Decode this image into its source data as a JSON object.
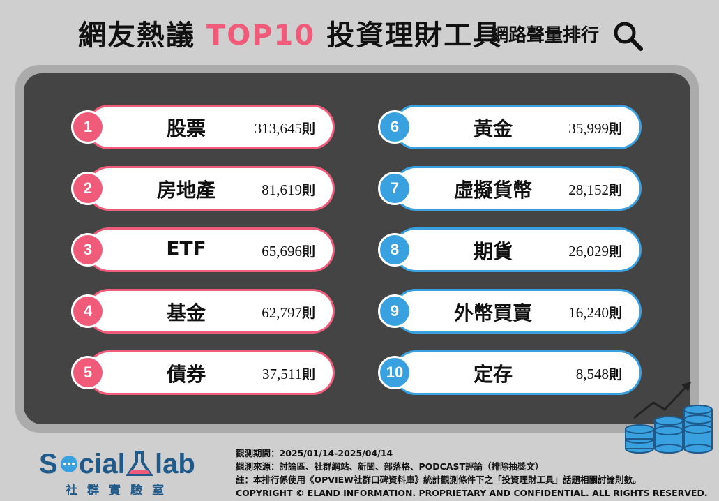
{
  "header": {
    "title_prefix": "網友熱議 ",
    "title_highlight": "TOP10",
    "title_suffix": " 投資理財工具",
    "subtitle": "網路聲量排行",
    "icon": "search-icon"
  },
  "colors": {
    "accent_pink": "#ef5b78",
    "accent_blue": "#3aa1e0",
    "panel_dark": "#444444",
    "brand_blue": "#1f5a8a"
  },
  "unit": "則",
  "rankings_left": [
    {
      "rank": "1",
      "name": "股票",
      "count": "313,645"
    },
    {
      "rank": "2",
      "name": "房地產",
      "count": "81,619"
    },
    {
      "rank": "3",
      "name": "ETF",
      "count": "65,696"
    },
    {
      "rank": "4",
      "name": "基金",
      "count": "62,797"
    },
    {
      "rank": "5",
      "name": "債券",
      "count": "37,511"
    }
  ],
  "rankings_right": [
    {
      "rank": "6",
      "name": "黃金",
      "count": "35,999"
    },
    {
      "rank": "7",
      "name": "虛擬貨幣",
      "count": "28,152"
    },
    {
      "rank": "8",
      "name": "期貨",
      "count": "26,029"
    },
    {
      "rank": "9",
      "name": "外幣買賣",
      "count": "16,240"
    },
    {
      "rank": "10",
      "name": "定存",
      "count": "8,548"
    }
  ],
  "logo": {
    "word": "SocialLab",
    "sub": "社群實驗室"
  },
  "footer": {
    "period": "觀測期間：2025/01/14-2025/04/14",
    "source": "觀測來源：討論區、社群網站、新聞、部落格、PODCAST評論（排除抽獎文）",
    "note": "註：本排行係使用《OPVIEW社群口碑資料庫》統計觀測條件下之「投資理財工具」話題相關討論則數。",
    "copyright": "COPYRIGHT © ELAND INFORMATION. PROPRIETARY AND CONFIDENTIAL. ALL RIGHTS RESERVED."
  }
}
